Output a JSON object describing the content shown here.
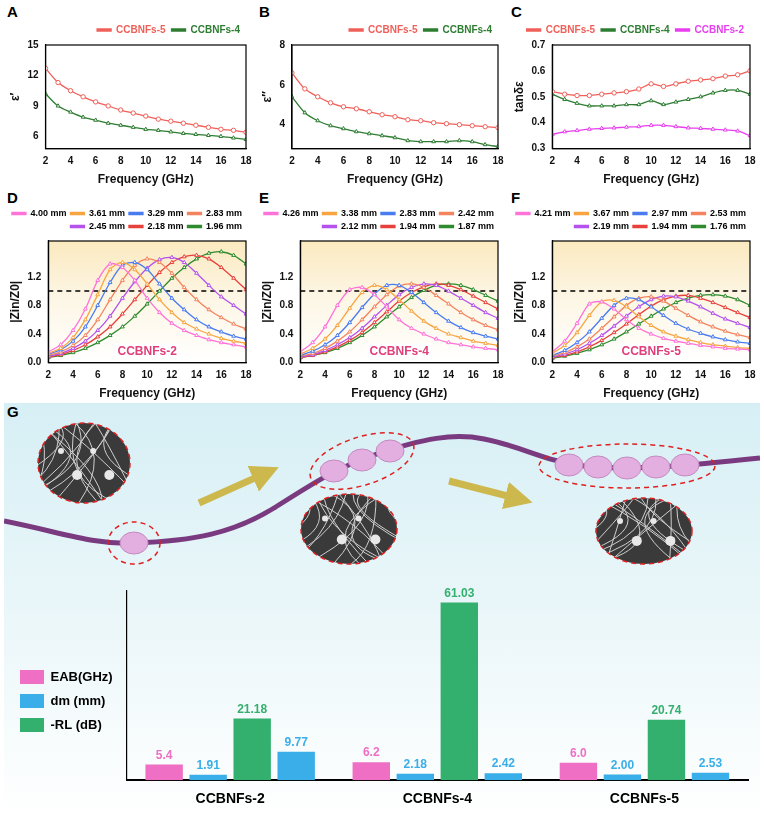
{
  "chart_data": [
    {
      "panel": "A",
      "type": "line",
      "x_label": "Frequency (GHz)",
      "y_label": "ε′",
      "x": [
        2,
        3,
        4,
        5,
        6,
        7,
        8,
        9,
        10,
        11,
        12,
        13,
        14,
        15,
        16,
        17,
        18
      ],
      "xlim": [
        2,
        18
      ],
      "xticks": [
        2,
        4,
        6,
        8,
        10,
        12,
        14,
        16,
        18
      ],
      "ylim": [
        4.8,
        15
      ],
      "yticks": [
        6,
        9,
        12,
        15
      ],
      "grid": false,
      "legend": "top",
      "series": [
        {
          "name": "CCBNFs-5",
          "color": "#f0605a",
          "marker": "circle",
          "values": [
            12.7,
            11.3,
            10.5,
            9.9,
            9.4,
            9.0,
            8.6,
            8.3,
            8.0,
            7.7,
            7.5,
            7.3,
            7.1,
            6.9,
            6.7,
            6.6,
            6.4
          ]
        },
        {
          "name": "CCBNFs-4",
          "color": "#2e7d32",
          "marker": "triangle",
          "values": [
            10.2,
            9.0,
            8.4,
            7.9,
            7.6,
            7.3,
            7.1,
            6.9,
            6.7,
            6.6,
            6.45,
            6.3,
            6.2,
            6.1,
            6.0,
            5.85,
            5.7
          ]
        }
      ]
    },
    {
      "panel": "B",
      "type": "line",
      "x_label": "Frequency (GHz)",
      "y_label": "ε″",
      "x": [
        2,
        3,
        4,
        5,
        6,
        7,
        8,
        9,
        10,
        11,
        12,
        13,
        14,
        15,
        16,
        17,
        18
      ],
      "xlim": [
        2,
        18
      ],
      "xticks": [
        2,
        4,
        6,
        8,
        10,
        12,
        14,
        16,
        18
      ],
      "ylim": [
        2.8,
        8
      ],
      "yticks": [
        4,
        6,
        8
      ],
      "grid": false,
      "legend": "top",
      "series": [
        {
          "name": "CCBNFs-5",
          "color": "#f0605a",
          "marker": "circle",
          "values": [
            6.6,
            5.8,
            5.4,
            5.1,
            4.9,
            4.8,
            4.65,
            4.5,
            4.4,
            4.25,
            4.2,
            4.1,
            4.05,
            4.0,
            3.95,
            3.9,
            3.85
          ]
        },
        {
          "name": "CCBNFs-4",
          "color": "#2e7d32",
          "marker": "triangle",
          "values": [
            5.4,
            4.6,
            4.2,
            3.95,
            3.8,
            3.65,
            3.55,
            3.45,
            3.35,
            3.2,
            3.15,
            3.15,
            3.15,
            3.2,
            3.15,
            3.0,
            2.9
          ]
        }
      ]
    },
    {
      "panel": "C",
      "type": "line",
      "x_label": "Frequency (GHz)",
      "y_label": "tanδε",
      "x": [
        2,
        3,
        4,
        5,
        6,
        7,
        8,
        9,
        10,
        11,
        12,
        13,
        14,
        15,
        16,
        17,
        18
      ],
      "xlim": [
        2,
        18
      ],
      "xticks": [
        2,
        4,
        6,
        8,
        10,
        12,
        14,
        16,
        18
      ],
      "ylim": [
        0.3,
        0.7
      ],
      "yticks": [
        0.3,
        0.4,
        0.5,
        0.6,
        0.7
      ],
      "grid": false,
      "legend": "top",
      "series": [
        {
          "name": "CCBNFs-5",
          "color": "#f0605a",
          "marker": "circle",
          "values": [
            0.52,
            0.51,
            0.505,
            0.505,
            0.51,
            0.515,
            0.52,
            0.53,
            0.55,
            0.54,
            0.55,
            0.56,
            0.565,
            0.57,
            0.58,
            0.585,
            0.6
          ]
        },
        {
          "name": "CCBNFs-4",
          "color": "#2e7d32",
          "marker": "triangle",
          "values": [
            0.51,
            0.49,
            0.475,
            0.465,
            0.465,
            0.465,
            0.47,
            0.47,
            0.485,
            0.47,
            0.48,
            0.49,
            0.5,
            0.515,
            0.525,
            0.525,
            0.51
          ]
        },
        {
          "name": "CCBNFs-2",
          "color": "#e83ff0",
          "marker": "triangle",
          "values": [
            0.355,
            0.365,
            0.37,
            0.375,
            0.378,
            0.38,
            0.383,
            0.385,
            0.39,
            0.39,
            0.385,
            0.38,
            0.378,
            0.375,
            0.372,
            0.368,
            0.35
          ]
        }
      ]
    },
    {
      "panel": "D",
      "type": "line",
      "x_label": "Frequency (GHz)",
      "y_label": "|Zin/Z0|",
      "annotation": "CCBNFs-2",
      "reference_line": 1,
      "x": [
        2,
        3,
        4,
        5,
        6,
        7,
        8,
        9,
        10,
        11,
        12,
        13,
        14,
        15,
        16,
        17,
        18
      ],
      "xlim": [
        2,
        18
      ],
      "xticks": [
        2,
        4,
        6,
        8,
        10,
        12,
        14,
        16,
        18
      ],
      "ylim": [
        0,
        1.7
      ],
      "yticks": [
        {
          "value": 0,
          "label": "0.0"
        },
        0.4,
        0.8,
        1.2
      ],
      "grid": false,
      "legend": "top",
      "series": [
        {
          "name": "4.00 mm",
          "color": "#ff73d9",
          "marker": "triangle",
          "values": [
            0.15,
            0.25,
            0.45,
            0.75,
            1.15,
            1.38,
            1.33,
            1.15,
            0.9,
            0.7,
            0.55,
            0.45,
            0.38,
            0.32,
            0.28,
            0.25,
            0.22
          ]
        },
        {
          "name": "3.61 mm",
          "color": "#f7a541",
          "marker": "triangle",
          "values": [
            0.13,
            0.2,
            0.35,
            0.6,
            0.95,
            1.3,
            1.4,
            1.3,
            1.1,
            0.88,
            0.7,
            0.56,
            0.47,
            0.4,
            0.34,
            0.3,
            0.27
          ]
        },
        {
          "name": "3.29 mm",
          "color": "#4a7cf0",
          "marker": "triangle",
          "values": [
            0.12,
            0.18,
            0.3,
            0.5,
            0.8,
            1.12,
            1.36,
            1.4,
            1.3,
            1.1,
            0.9,
            0.74,
            0.6,
            0.5,
            0.43,
            0.37,
            0.33
          ]
        },
        {
          "name": "2.83 mm",
          "color": "#f4845f",
          "marker": "triangle",
          "values": [
            0.1,
            0.15,
            0.24,
            0.38,
            0.6,
            0.88,
            1.15,
            1.36,
            1.45,
            1.4,
            1.25,
            1.05,
            0.88,
            0.74,
            0.63,
            0.54,
            0.47
          ]
        },
        {
          "name": "2.45 mm",
          "color": "#b552ee",
          "marker": "triangle",
          "values": [
            0.09,
            0.13,
            0.2,
            0.3,
            0.45,
            0.65,
            0.9,
            1.13,
            1.32,
            1.44,
            1.47,
            1.4,
            1.25,
            1.08,
            0.92,
            0.8,
            0.68
          ]
        },
        {
          "name": "2.18 mm",
          "color": "#e8413c",
          "marker": "triangle",
          "values": [
            0.08,
            0.11,
            0.17,
            0.25,
            0.36,
            0.5,
            0.68,
            0.88,
            1.08,
            1.26,
            1.4,
            1.48,
            1.5,
            1.45,
            1.33,
            1.18,
            1.02
          ]
        },
        {
          "name": "1.96 mm",
          "color": "#2e8b2e",
          "marker": "triangle",
          "values": [
            0.07,
            0.1,
            0.14,
            0.2,
            0.28,
            0.38,
            0.5,
            0.65,
            0.82,
            1.0,
            1.18,
            1.33,
            1.45,
            1.53,
            1.55,
            1.5,
            1.38
          ]
        }
      ]
    },
    {
      "panel": "E",
      "type": "line",
      "x_label": "Frequency (GHz)",
      "y_label": "|Zin/Z0|",
      "annotation": "CCBNFs-4",
      "reference_line": 1,
      "x": [
        2,
        3,
        4,
        5,
        6,
        7,
        8,
        9,
        10,
        11,
        12,
        13,
        14,
        15,
        16,
        17,
        18
      ],
      "xlim": [
        2,
        18
      ],
      "xticks": [
        2,
        4,
        6,
        8,
        10,
        12,
        14,
        16,
        18
      ],
      "ylim": [
        0,
        1.7
      ],
      "yticks": [
        {
          "value": 0,
          "label": "0.0"
        },
        0.4,
        0.8,
        1.2
      ],
      "grid": false,
      "legend": "top",
      "series": [
        {
          "name": "4.26 mm",
          "color": "#ff73d9",
          "marker": "triangle",
          "values": [
            0.15,
            0.28,
            0.5,
            0.8,
            1.02,
            1.05,
            0.95,
            0.78,
            0.6,
            0.48,
            0.4,
            0.33,
            0.28,
            0.25,
            0.22,
            0.2,
            0.18
          ]
        },
        {
          "name": "3.38 mm",
          "color": "#f7a541",
          "marker": "triangle",
          "values": [
            0.12,
            0.2,
            0.33,
            0.52,
            0.76,
            0.98,
            1.08,
            1.02,
            0.88,
            0.72,
            0.58,
            0.48,
            0.4,
            0.35,
            0.3,
            0.27,
            0.24
          ]
        },
        {
          "name": "2.83 mm",
          "color": "#4a7cf0",
          "marker": "triangle",
          "values": [
            0.1,
            0.16,
            0.25,
            0.38,
            0.56,
            0.77,
            0.96,
            1.08,
            1.08,
            0.98,
            0.84,
            0.7,
            0.58,
            0.49,
            0.42,
            0.37,
            0.33
          ]
        },
        {
          "name": "2.42 mm",
          "color": "#f4845f",
          "marker": "triangle",
          "values": [
            0.09,
            0.13,
            0.2,
            0.3,
            0.43,
            0.6,
            0.78,
            0.95,
            1.07,
            1.1,
            1.05,
            0.94,
            0.82,
            0.7,
            0.6,
            0.52,
            0.46
          ]
        },
        {
          "name": "2.12 mm",
          "color": "#b552ee",
          "marker": "triangle",
          "values": [
            0.08,
            0.11,
            0.17,
            0.25,
            0.35,
            0.48,
            0.64,
            0.8,
            0.95,
            1.05,
            1.1,
            1.08,
            1.0,
            0.9,
            0.8,
            0.7,
            0.62
          ]
        },
        {
          "name": "1.94 mm",
          "color": "#e8413c",
          "marker": "triangle",
          "values": [
            0.07,
            0.1,
            0.15,
            0.22,
            0.31,
            0.42,
            0.56,
            0.71,
            0.86,
            0.98,
            1.06,
            1.1,
            1.08,
            1.02,
            0.93,
            0.84,
            0.75
          ]
        },
        {
          "name": "1.87 mm",
          "color": "#2e8b2e",
          "marker": "triangle",
          "values": [
            0.07,
            0.1,
            0.14,
            0.2,
            0.28,
            0.38,
            0.5,
            0.64,
            0.78,
            0.91,
            1.01,
            1.08,
            1.1,
            1.08,
            1.02,
            0.94,
            0.86
          ]
        }
      ]
    },
    {
      "panel": "F",
      "type": "line",
      "x_label": "Frequency (GHz)",
      "y_label": "|Zin/Z0|",
      "annotation": "CCBNFs-5",
      "reference_line": 1,
      "x": [
        2,
        3,
        4,
        5,
        6,
        7,
        8,
        9,
        10,
        11,
        12,
        13,
        14,
        15,
        16,
        17,
        18
      ],
      "xlim": [
        2,
        18
      ],
      "xticks": [
        2,
        4,
        6,
        8,
        10,
        12,
        14,
        16,
        18
      ],
      "ylim": [
        0,
        1.7
      ],
      "yticks": [
        {
          "value": 0,
          "label": "0.0"
        },
        0.4,
        0.8,
        1.2
      ],
      "grid": false,
      "legend": "top",
      "series": [
        {
          "name": "4.21 mm",
          "color": "#ff73d9",
          "marker": "triangle",
          "values": [
            0.15,
            0.3,
            0.55,
            0.82,
            0.85,
            0.75,
            0.6,
            0.48,
            0.4,
            0.34,
            0.3,
            0.27,
            0.24,
            0.22,
            0.2,
            0.19,
            0.18
          ]
        },
        {
          "name": "3.67 mm",
          "color": "#f7a541",
          "marker": "triangle",
          "values": [
            0.13,
            0.24,
            0.42,
            0.66,
            0.85,
            0.87,
            0.78,
            0.64,
            0.52,
            0.43,
            0.37,
            0.32,
            0.28,
            0.25,
            0.23,
            0.21,
            0.2
          ]
        },
        {
          "name": "2.97 mm",
          "color": "#4a7cf0",
          "marker": "triangle",
          "values": [
            0.1,
            0.17,
            0.28,
            0.43,
            0.62,
            0.8,
            0.9,
            0.88,
            0.78,
            0.66,
            0.55,
            0.47,
            0.41,
            0.36,
            0.32,
            0.29,
            0.27
          ]
        },
        {
          "name": "2.53 mm",
          "color": "#f4845f",
          "marker": "triangle",
          "values": [
            0.09,
            0.14,
            0.22,
            0.33,
            0.48,
            0.64,
            0.8,
            0.9,
            0.92,
            0.86,
            0.76,
            0.66,
            0.57,
            0.5,
            0.44,
            0.39,
            0.35
          ]
        },
        {
          "name": "2.19 mm",
          "color": "#b552ee",
          "marker": "triangle",
          "values": [
            0.08,
            0.12,
            0.18,
            0.27,
            0.38,
            0.51,
            0.65,
            0.78,
            0.88,
            0.93,
            0.92,
            0.86,
            0.78,
            0.69,
            0.61,
            0.55,
            0.49
          ]
        },
        {
          "name": "1.94 mm",
          "color": "#e8413c",
          "marker": "triangle",
          "values": [
            0.07,
            0.1,
            0.15,
            0.22,
            0.31,
            0.42,
            0.54,
            0.67,
            0.79,
            0.88,
            0.93,
            0.94,
            0.9,
            0.84,
            0.77,
            0.7,
            0.63
          ]
        },
        {
          "name": "1.76 mm",
          "color": "#2e8b2e",
          "marker": "triangle",
          "values": [
            0.06,
            0.09,
            0.13,
            0.18,
            0.25,
            0.33,
            0.43,
            0.54,
            0.65,
            0.75,
            0.84,
            0.9,
            0.94,
            0.95,
            0.93,
            0.88,
            0.8
          ]
        }
      ]
    },
    {
      "panel": "G",
      "type": "bar",
      "categories": [
        "CCBNFs-2",
        "CCBNFs-4",
        "CCBNFs-5"
      ],
      "ylim": [
        0,
        65
      ],
      "grid": false,
      "legend": "left",
      "data_labels": true,
      "tick_labels": "x",
      "series": [
        {
          "name": "EAB(GHz)",
          "color": "#ee6fc4",
          "values": [
            5.4,
            6.2,
            6.0
          ],
          "value_labels": [
            "5.4",
            "6.2",
            "6.0"
          ]
        },
        {
          "name": "dm (mm)",
          "color": "#3aaee8",
          "values": [
            1.91,
            2.18,
            2.0
          ],
          "value_labels": [
            "1.91",
            "2.18",
            "2.00"
          ]
        },
        {
          "name": "-RL (dB)",
          "color": "#34b06e",
          "values": [
            21.18,
            61.03,
            20.74
          ]
        },
        {
          "name": "dm (mm)",
          "color": "#3aaee8",
          "values": [
            9.77,
            2.42,
            2.53
          ]
        }
      ]
    }
  ]
}
